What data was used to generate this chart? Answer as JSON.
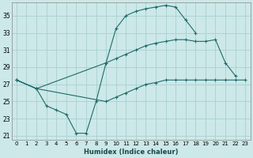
{
  "xlabel": "Humidex (Indice chaleur)",
  "background_color": "#cce8e8",
  "grid_color": "#aad0d0",
  "line_color": "#1e6b6b",
  "xlim": [
    -0.5,
    23.5
  ],
  "ylim": [
    20.5,
    36.5
  ],
  "xticks": [
    0,
    1,
    2,
    3,
    4,
    5,
    6,
    7,
    8,
    9,
    10,
    11,
    12,
    13,
    14,
    15,
    16,
    17,
    18,
    19,
    20,
    21,
    22,
    23
  ],
  "yticks": [
    21,
    23,
    25,
    27,
    29,
    31,
    33,
    35
  ],
  "series": [
    {
      "x": [
        0,
        2,
        3,
        4,
        5,
        6,
        7,
        8,
        9,
        10,
        11,
        12,
        13,
        14,
        15,
        16,
        17,
        18
      ],
      "y": [
        27.5,
        26.5,
        24.5,
        24.0,
        23.5,
        21.3,
        21.3,
        25.0,
        29.5,
        33.5,
        35.0,
        35.5,
        35.8,
        36.0,
        36.2,
        36.0,
        34.5,
        33.0
      ]
    },
    {
      "x": [
        0,
        2,
        9,
        10,
        11,
        12,
        13,
        14,
        15,
        16,
        17,
        18,
        19,
        20,
        21,
        22
      ],
      "y": [
        27.5,
        26.5,
        29.5,
        30.0,
        30.5,
        31.0,
        31.5,
        31.8,
        32.0,
        32.2,
        32.2,
        32.0,
        32.0,
        32.2,
        29.5,
        28.0
      ]
    },
    {
      "x": [
        0,
        2,
        9,
        10,
        11,
        12,
        13,
        14,
        15,
        16,
        17,
        18,
        19,
        20,
        21,
        22,
        23
      ],
      "y": [
        27.5,
        26.5,
        25.0,
        25.5,
        26.0,
        26.5,
        27.0,
        27.2,
        27.5,
        27.5,
        27.5,
        27.5,
        27.5,
        27.5,
        27.5,
        27.5,
        27.5
      ]
    }
  ]
}
